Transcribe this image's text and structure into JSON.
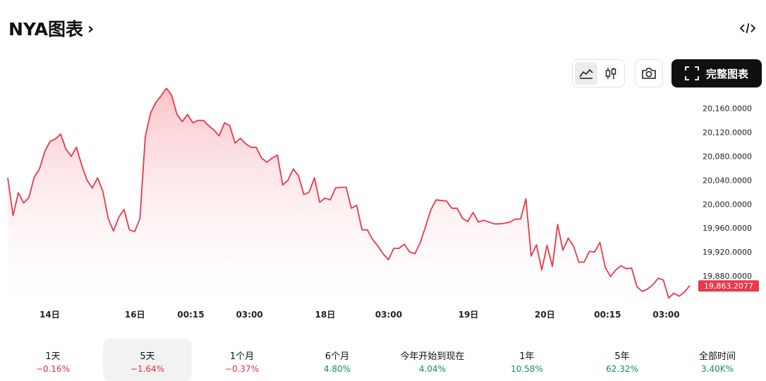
{
  "header": {
    "title": "NYA图表",
    "full_chart_label": "完整图表"
  },
  "icons": {
    "title_chevron": "chevron-right-icon",
    "embed": "code-icon",
    "area_chart": "area-chart-icon",
    "candlestick": "candlestick-icon",
    "snapshot": "camera-icon",
    "fullscreen": "fullscreen-icon"
  },
  "colors": {
    "line": "#e8384b",
    "area_top": "#f9b8bf",
    "current_badge": "#e8384b",
    "negative": "#e0303e",
    "positive": "#168a6a"
  },
  "ranges": [
    {
      "label": "1天",
      "change": "−0.16%",
      "direction": "neg"
    },
    {
      "label": "5天",
      "change": "−1.64%",
      "direction": "neg",
      "active": true
    },
    {
      "label": "1个月",
      "change": "−0.37%",
      "direction": "neg"
    },
    {
      "label": "6个月",
      "change": "4.80%",
      "direction": "pos"
    },
    {
      "label": "今年开始到现在",
      "change": "4.04%",
      "direction": "pos"
    },
    {
      "label": "1年",
      "change": "10.58%",
      "direction": "pos"
    },
    {
      "label": "5年",
      "change": "62.32%",
      "direction": "pos"
    },
    {
      "label": "全部时间",
      "change": "3.40K%",
      "direction": "pos"
    }
  ],
  "chart_data": {
    "type": "area",
    "ylim": [
      19834,
      20182
    ],
    "y_ticks": [
      "20,160.0000",
      "20,120.0000",
      "20,080.0000",
      "20,040.0000",
      "20,000.0000",
      "19,960.0000",
      "19,920.0000",
      "19,880.0000"
    ],
    "y_tick_values": [
      20160,
      20120,
      20080,
      20040,
      20000,
      19960,
      19920,
      19880
    ],
    "x_ticks": [
      "14日",
      "16日",
      "00:15",
      "03:00",
      "18日",
      "03:00",
      "19日",
      "20日",
      "00:15",
      "03:00"
    ],
    "x_tick_positions": [
      0.08,
      0.205,
      0.287,
      0.373,
      0.484,
      0.577,
      0.694,
      0.806,
      0.898,
      0.984
    ],
    "current_value": "19,863.2077",
    "current_numeric": 19863.2077,
    "values": [
      20044,
      19981,
      20019,
      20002,
      20011,
      20045,
      20059,
      20088,
      20105,
      20109,
      20117,
      20092,
      20080,
      20095,
      20065,
      20040,
      20027,
      20044,
      20021,
      19976,
      19955,
      19978,
      19991,
      19957,
      19954,
      19976,
      20112,
      20152,
      20170,
      20181,
      20194,
      20182,
      20150,
      20138,
      20150,
      20136,
      20140,
      20140,
      20131,
      20124,
      20114,
      20136,
      20131,
      20102,
      20110,
      20101,
      20095,
      20095,
      20077,
      20070,
      20077,
      20082,
      20032,
      20040,
      20059,
      20047,
      20016,
      20020,
      20044,
      20003,
      20010,
      20007,
      20027,
      20028,
      20028,
      19993,
      19998,
      19957,
      19957,
      19941,
      19930,
      19917,
      19907,
      19926,
      19926,
      19933,
      19920,
      19917,
      19935,
      19962,
      19990,
      20007,
      20006,
      20005,
      19993,
      19993,
      19976,
      19971,
      19986,
      19970,
      19973,
      19970,
      19967,
      19967,
      19968,
      19970,
      19975,
      19975,
      20009,
      19913,
      19932,
      19890,
      19931,
      19896,
      19966,
      19923,
      19943,
      19930,
      19903,
      19903,
      19921,
      19920,
      19936,
      19894,
      19879,
      19890,
      19897,
      19892,
      19893,
      19862,
      19854,
      19858,
      19865,
      19876,
      19873,
      19843,
      19851,
      19846,
      19853,
      19864
    ]
  }
}
